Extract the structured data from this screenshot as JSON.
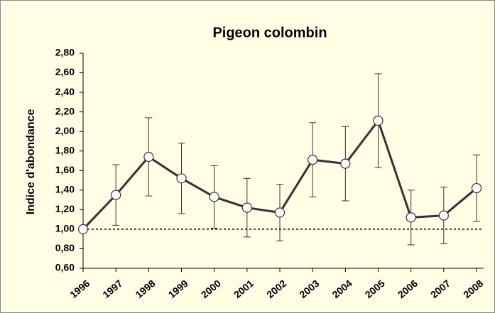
{
  "chart_data": {
    "type": "line",
    "title": "Pigeon colombin",
    "y_label": "Indice d'abondance",
    "categories": [
      "1996",
      "1997",
      "1998",
      "1999",
      "2000",
      "2001",
      "2002",
      "2003",
      "2004",
      "2005",
      "2006",
      "2007",
      "2008"
    ],
    "values": [
      1.0,
      1.35,
      1.74,
      1.52,
      1.33,
      1.22,
      1.17,
      1.71,
      1.67,
      2.11,
      1.12,
      1.14,
      1.42
    ],
    "errors": [
      0,
      0.31,
      0.4,
      0.36,
      0.32,
      0.3,
      0.29,
      0.38,
      0.38,
      0.48,
      0.28,
      0.29,
      0.34
    ],
    "color": "#333333",
    "marker_fill": "#ffffff",
    "reference_line": 1.0,
    "ylim": [
      0.6,
      2.8
    ],
    "yticks": [
      {
        "value": 0.6,
        "label": "0,60"
      },
      {
        "value": 0.8,
        "label": "0,80"
      },
      {
        "value": 1.0,
        "label": "1,00"
      },
      {
        "value": 1.2,
        "label": "1,20"
      },
      {
        "value": 1.4,
        "label": "1,40"
      },
      {
        "value": 1.6,
        "label": "1,60"
      },
      {
        "value": 1.8,
        "label": "1,80"
      },
      {
        "value": 2.0,
        "label": "2,00"
      },
      {
        "value": 2.2,
        "label": "2,20"
      },
      {
        "value": 2.4,
        "label": "2,40"
      },
      {
        "value": 2.6,
        "label": "2,60"
      },
      {
        "value": 2.8,
        "label": "2,80"
      }
    ],
    "grid": false
  }
}
